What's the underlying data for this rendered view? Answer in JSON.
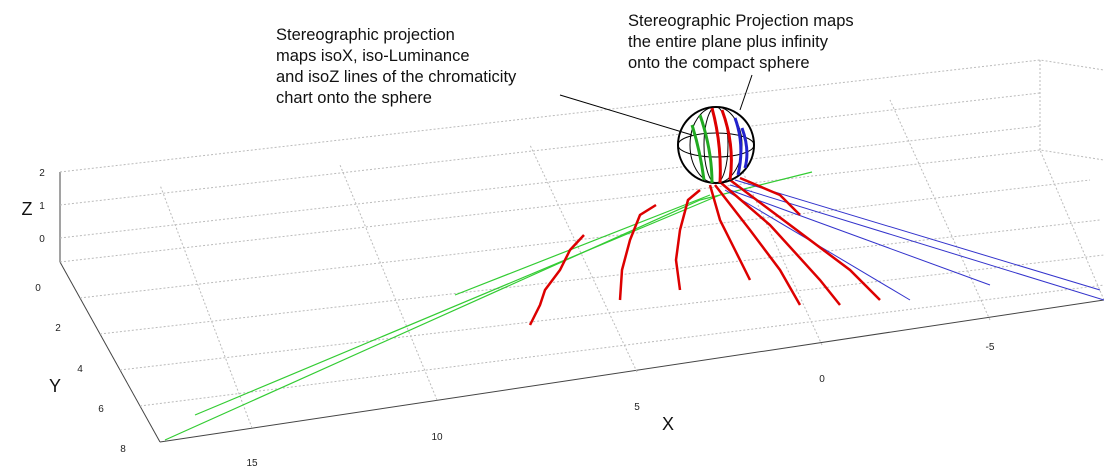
{
  "annotations": [
    {
      "lines": [
        "Stereographic projection",
        "maps isoX, iso-Luminance",
        "and isoZ lines of the chromaticity",
        "chart onto the sphere"
      ]
    },
    {
      "lines": [
        "Stereographic Projection maps",
        "the entire plane plus infinity",
        "onto the compact sphere"
      ]
    }
  ],
  "axes": {
    "x": {
      "label": "X",
      "ticks": [
        "15",
        "10",
        "5",
        "0",
        "-5"
      ]
    },
    "y": {
      "label": "Y",
      "ticks": [
        "0",
        "2",
        "4",
        "6",
        "8"
      ]
    },
    "z": {
      "label": "Z",
      "ticks": [
        "2",
        "1",
        "0"
      ]
    }
  }
}
